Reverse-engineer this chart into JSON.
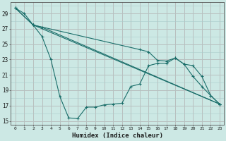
{
  "xlabel": "Humidex (Indice chaleur)",
  "background_color": "#cce8e4",
  "grid_color": "#aacccc",
  "line_color": "#1a6e6a",
  "xlim": [
    -0.5,
    23.5
  ],
  "ylim": [
    14.5,
    30.5
  ],
  "yticks": [
    15,
    17,
    19,
    21,
    23,
    25,
    27,
    29
  ],
  "xticks": [
    0,
    1,
    2,
    3,
    4,
    5,
    6,
    7,
    8,
    9,
    10,
    11,
    12,
    13,
    14,
    15,
    16,
    17,
    18,
    19,
    20,
    21,
    22,
    23
  ],
  "lines": [
    {
      "x": [
        0,
        2,
        23
      ],
      "y": [
        29.7,
        27.5,
        17.2
      ]
    },
    {
      "x": [
        0,
        2,
        3,
        23
      ],
      "y": [
        29.7,
        27.5,
        27.2,
        17.2
      ]
    },
    {
      "x": [
        0,
        1,
        2,
        3,
        4,
        5,
        6,
        7,
        8,
        9,
        10,
        11,
        12,
        13,
        14,
        15,
        16,
        17,
        18,
        19,
        20,
        21,
        22,
        23
      ],
      "y": [
        29.7,
        29.0,
        27.5,
        26.0,
        23.0,
        18.2,
        15.4,
        15.3,
        16.8,
        16.8,
        17.1,
        17.2,
        17.3,
        19.5,
        19.8,
        22.2,
        22.5,
        22.5,
        23.2,
        22.4,
        20.8,
        19.5,
        18.3,
        17.2
      ]
    },
    {
      "x": [
        2,
        14,
        15,
        16,
        17,
        18,
        19,
        20,
        21,
        22,
        23
      ],
      "y": [
        27.5,
        24.3,
        24.0,
        22.9,
        22.8,
        23.2,
        22.4,
        22.2,
        20.8,
        18.3,
        17.2
      ]
    }
  ]
}
